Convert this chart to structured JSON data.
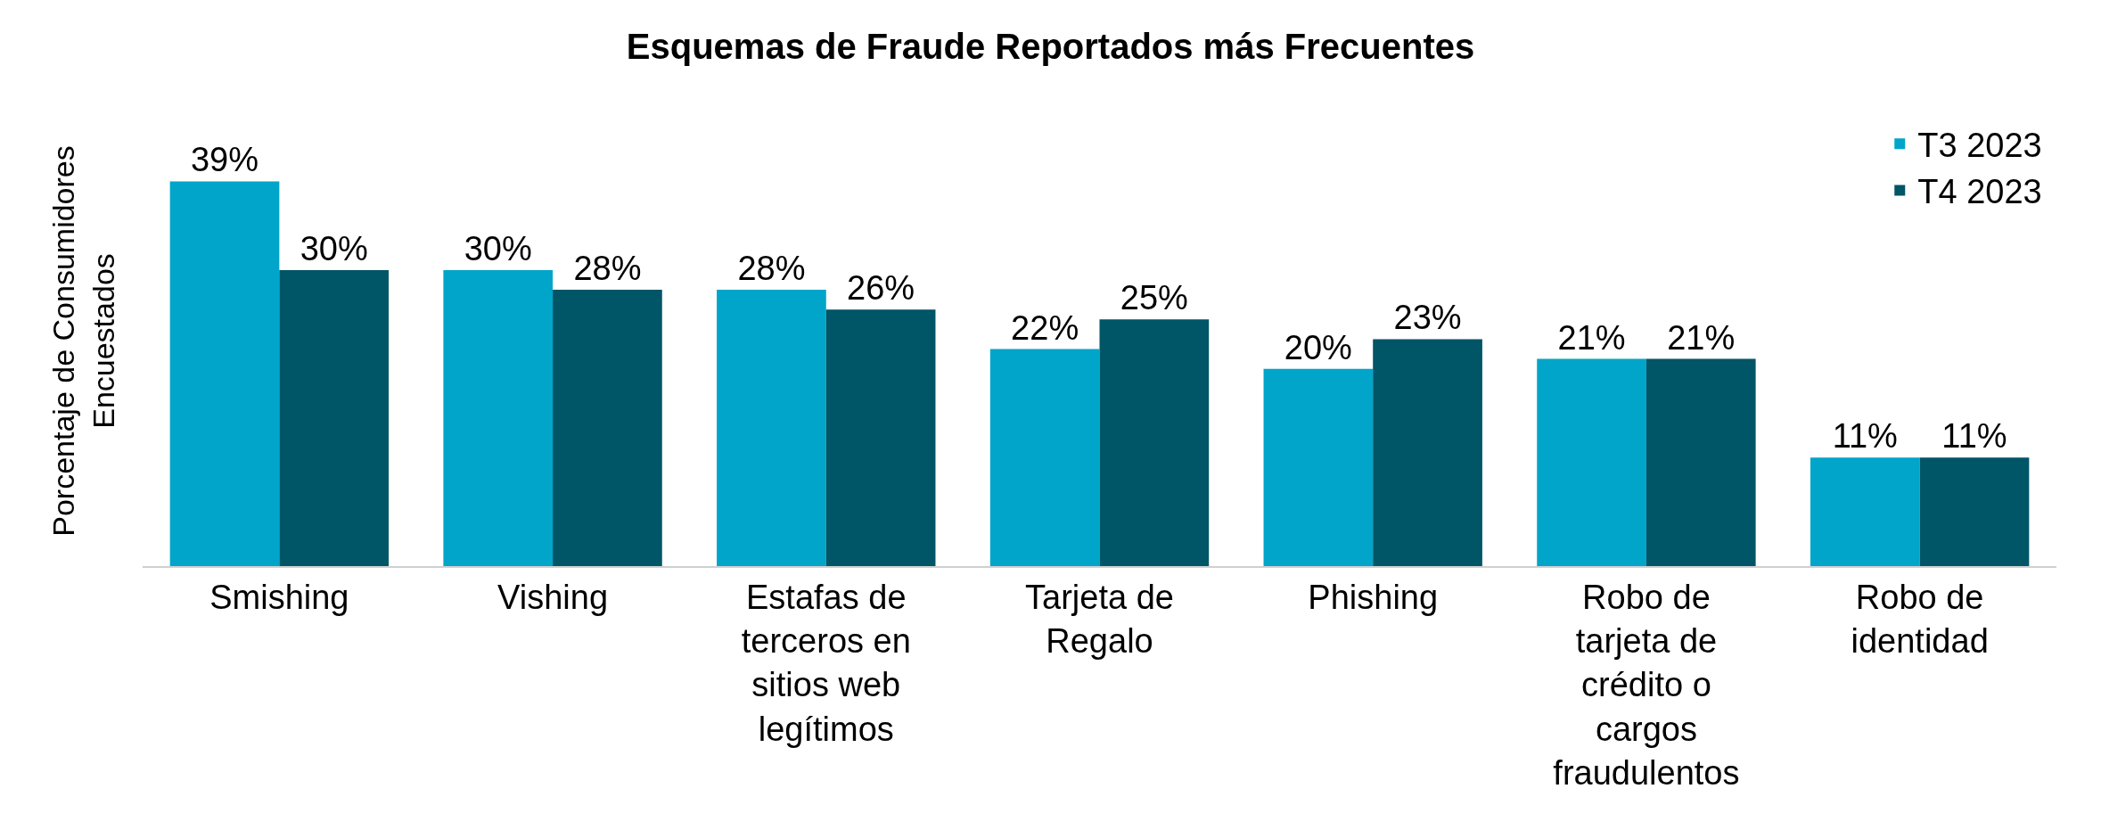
{
  "chart_data": {
    "type": "bar",
    "title": "Esquemas de Fraude Reportados más Frecuentes",
    "ylabel": "Porcentaje de Consumidores\nEncuestados",
    "categories": [
      "Smishing",
      "Vishing",
      "Estafas de\nterceros en\nsitios web\nlegítimos",
      "Tarjeta de\nRegalo",
      "Phishing",
      "Robo de\ntarjeta de\ncrédito o\ncargos\nfraudulentos",
      "Robo de\nidentidad"
    ],
    "series": [
      {
        "name": "T3 2023",
        "color": "#00a5c9",
        "values": [
          39,
          30,
          28,
          22,
          20,
          21,
          11
        ],
        "value_labels": [
          "39%",
          "30%",
          "28%",
          "22%",
          "20%",
          "21%",
          "11%"
        ]
      },
      {
        "name": "T4 2023",
        "color": "#005566",
        "values": [
          30,
          28,
          26,
          25,
          23,
          21,
          11
        ],
        "value_labels": [
          "30%",
          "28%",
          "26%",
          "25%",
          "23%",
          "21%",
          "11%"
        ]
      }
    ],
    "legend": "top right"
  }
}
